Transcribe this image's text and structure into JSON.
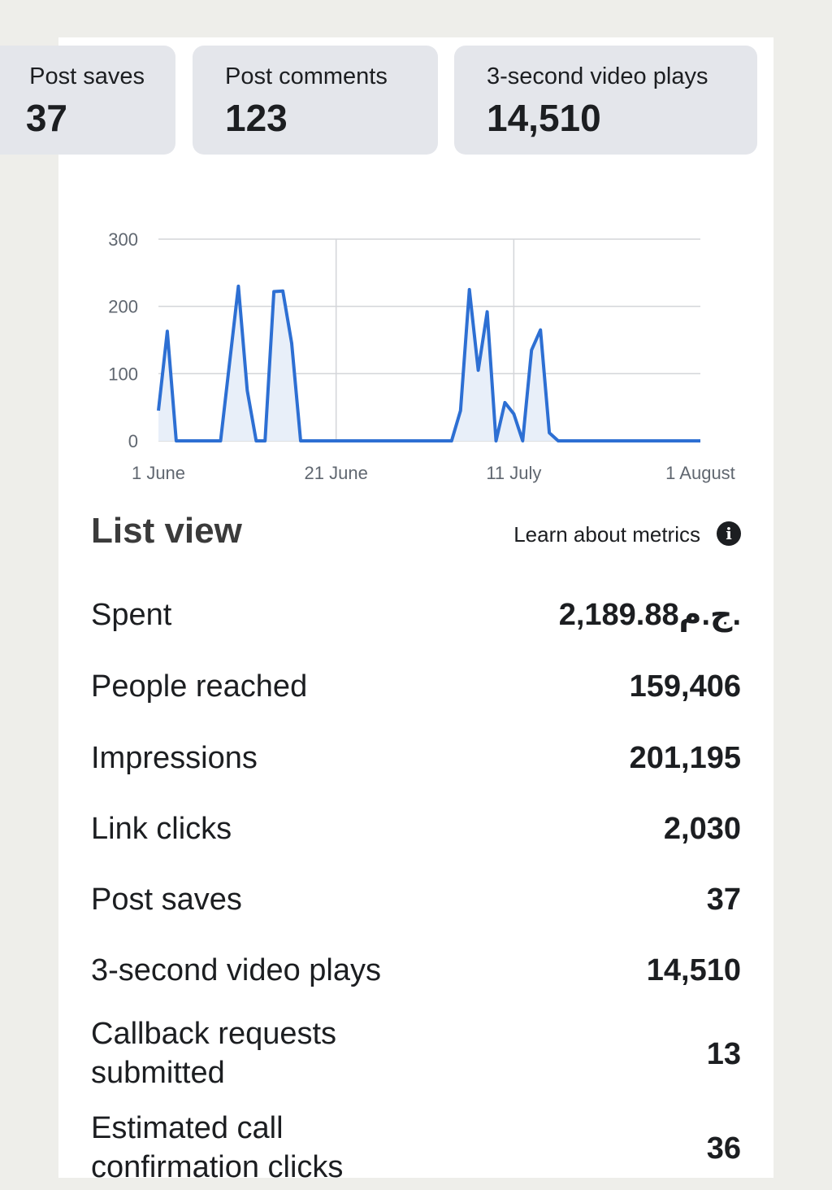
{
  "summary_cards": [
    {
      "label": "Post saves",
      "value": "37"
    },
    {
      "label": "Post comments",
      "value": "123"
    },
    {
      "label": "3-second video plays",
      "value": "14,510"
    }
  ],
  "chart_data": {
    "type": "line",
    "x_tick_labels": [
      "1 June",
      "21 June",
      "11 July",
      "1 August"
    ],
    "y_tick_labels": [
      "0",
      "100",
      "200",
      "300"
    ],
    "ylim": [
      0,
      300
    ],
    "x_start": "1 June",
    "x_end": "1 August",
    "grid": true,
    "color": "#2d6fd3",
    "fill": "#e8eff9",
    "points": [
      {
        "x": "1 June",
        "y": 45
      },
      {
        "x": "2 June",
        "y": 163
      },
      {
        "x": "3 June",
        "y": 0
      },
      {
        "x": "8 June",
        "y": 0
      },
      {
        "x": "10 June",
        "y": 230
      },
      {
        "x": "11 June",
        "y": 75
      },
      {
        "x": "12 June",
        "y": 0
      },
      {
        "x": "13 June",
        "y": 0
      },
      {
        "x": "14 June",
        "y": 222
      },
      {
        "x": "15 June",
        "y": 223
      },
      {
        "x": "16 June",
        "y": 145
      },
      {
        "x": "17 June",
        "y": 0
      },
      {
        "x": "4 July",
        "y": 0
      },
      {
        "x": "5 July",
        "y": 45
      },
      {
        "x": "6 July",
        "y": 225
      },
      {
        "x": "7 July",
        "y": 105
      },
      {
        "x": "8 July",
        "y": 192
      },
      {
        "x": "9 July",
        "y": 0
      },
      {
        "x": "10 July",
        "y": 57
      },
      {
        "x": "11 July",
        "y": 40
      },
      {
        "x": "12 July",
        "y": 0
      },
      {
        "x": "13 July",
        "y": 135
      },
      {
        "x": "14 July",
        "y": 165
      },
      {
        "x": "15 July",
        "y": 12
      },
      {
        "x": "16 July",
        "y": 0
      },
      {
        "x": "1 August",
        "y": 0
      }
    ]
  },
  "list_view": {
    "title": "List view",
    "learn_link": "Learn about metrics",
    "info_icon": "info-icon",
    "metrics": [
      {
        "label": "Spent",
        "value": "2,189.88ج.م."
      },
      {
        "label": "People reached",
        "value": "159,406"
      },
      {
        "label": "Impressions",
        "value": "201,195"
      },
      {
        "label": "Link clicks",
        "value": "2,030"
      },
      {
        "label": "Post saves",
        "value": "37"
      },
      {
        "label": "3-second video plays",
        "value": "14,510"
      },
      {
        "label": "Callback requests submitted",
        "value": "13"
      },
      {
        "label": "Estimated call confirmation clicks",
        "value": "36"
      }
    ]
  }
}
